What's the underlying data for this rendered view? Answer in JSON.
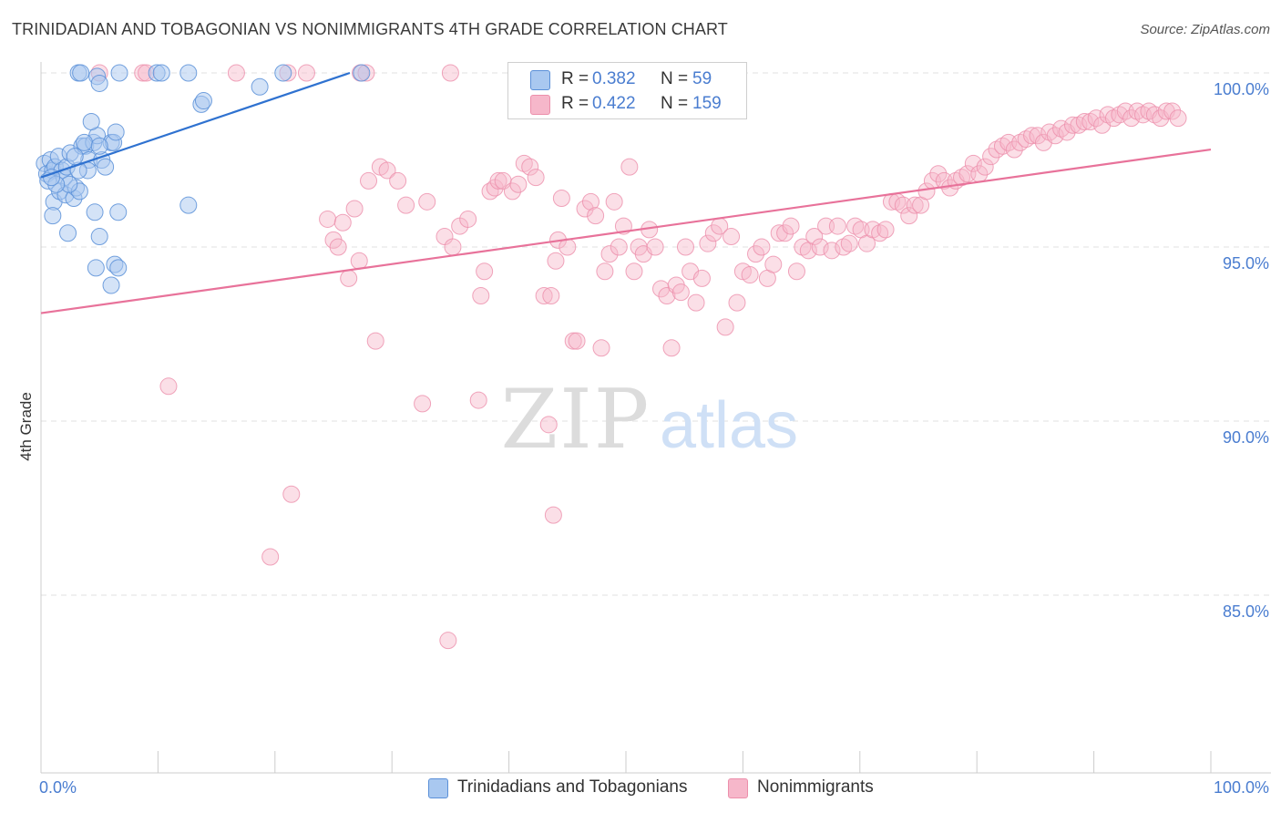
{
  "title": "TRINIDADIAN AND TOBAGONIAN VS NONIMMIGRANTS 4TH GRADE CORRELATION CHART",
  "source": "Source: ZipAtlas.com",
  "watermark": {
    "zip": "ZIP",
    "atlas": "atlas"
  },
  "colors": {
    "blue_fill": "#a9c8f0",
    "blue_stroke": "#5b90d8",
    "blue_line": "#2f72d0",
    "pink_fill": "#f6b7ca",
    "pink_stroke": "#ec8fab",
    "pink_line": "#e8729a",
    "tick_text": "#4a7dd0",
    "grid": "#e2e2e2"
  },
  "legend": {
    "items": [
      {
        "r_label": "R =",
        "r_value": "0.382",
        "n_label": "N =",
        "n_value": "59"
      },
      {
        "r_label": "R =",
        "r_value": "0.422",
        "n_label": "N =",
        "n_value": "159"
      }
    ]
  },
  "bottom_legend": {
    "blue": "Trinidadians and Tobagonians",
    "pink": "Nonimmigrants"
  },
  "chart_data": {
    "type": "scatter",
    "title": "TRINIDADIAN AND TOBAGONIAN VS NONIMMIGRANTS 4TH GRADE CORRELATION CHART",
    "xlabel": "",
    "ylabel": "4th Grade",
    "xlim": [
      0,
      100
    ],
    "ylim": [
      80.0,
      100.2
    ],
    "x_tick_labels": [
      "0.0%",
      "100.0%"
    ],
    "y_ticks": [
      {
        "value": 100.0,
        "label": "100.0%"
      },
      {
        "value": 95.0,
        "label": "95.0%"
      },
      {
        "value": 90.0,
        "label": "90.0%"
      },
      {
        "value": 85.0,
        "label": "85.0%"
      }
    ],
    "x_minor_ticks": [
      10,
      20,
      30,
      40,
      50,
      60,
      70,
      80,
      90,
      100
    ],
    "series": [
      {
        "name": "Trinidadians and Tobagonians",
        "R": 0.382,
        "N": 59,
        "trend": {
          "x": [
            0,
            26.4
          ],
          "y": [
            97.0,
            100.0
          ]
        },
        "points": [
          [
            0.3,
            97.4
          ],
          [
            0.5,
            97.1
          ],
          [
            0.8,
            97.5
          ],
          [
            1.0,
            97.2
          ],
          [
            1.2,
            97.3
          ],
          [
            1.5,
            97.6
          ],
          [
            1.8,
            97.2
          ],
          [
            2.0,
            97.0
          ],
          [
            2.2,
            97.3
          ],
          [
            2.5,
            97.7
          ],
          [
            0.6,
            96.9
          ],
          [
            1.1,
            96.3
          ],
          [
            1.6,
            96.6
          ],
          [
            2.1,
            96.5
          ],
          [
            2.8,
            96.4
          ],
          [
            3.0,
            96.7
          ],
          [
            3.3,
            96.6
          ],
          [
            2.4,
            96.8
          ],
          [
            1.3,
            96.8
          ],
          [
            0.9,
            97.0
          ],
          [
            3.5,
            97.9
          ],
          [
            3.8,
            97.9
          ],
          [
            4.1,
            97.5
          ],
          [
            4.5,
            98.0
          ],
          [
            4.8,
            98.2
          ],
          [
            5.2,
            97.5
          ],
          [
            5.5,
            97.3
          ],
          [
            6.0,
            98.0
          ],
          [
            6.2,
            98.0
          ],
          [
            6.4,
            98.3
          ],
          [
            3.7,
            98.0
          ],
          [
            4.0,
            97.2
          ],
          [
            4.3,
            98.6
          ],
          [
            5.0,
            97.9
          ],
          [
            4.6,
            96.0
          ],
          [
            5.0,
            95.3
          ],
          [
            2.3,
            95.4
          ],
          [
            1.0,
            95.9
          ],
          [
            6.0,
            93.9
          ],
          [
            6.3,
            94.5
          ],
          [
            4.7,
            94.4
          ],
          [
            6.6,
            96.0
          ],
          [
            3.2,
            97.2
          ],
          [
            2.9,
            97.6
          ],
          [
            4.8,
            99.9
          ],
          [
            5.0,
            99.7
          ],
          [
            3.2,
            100.0
          ],
          [
            3.4,
            100.0
          ],
          [
            6.7,
            100.0
          ],
          [
            9.9,
            100.0
          ],
          [
            10.3,
            100.0
          ],
          [
            12.6,
            100.0
          ],
          [
            13.7,
            99.1
          ],
          [
            13.9,
            99.2
          ],
          [
            18.7,
            99.6
          ],
          [
            20.7,
            100.0
          ],
          [
            27.4,
            100.0
          ],
          [
            6.6,
            94.4
          ],
          [
            12.6,
            96.2
          ]
        ]
      },
      {
        "name": "Nonimmigrants",
        "R": 0.422,
        "N": 159,
        "trend": {
          "x": [
            0,
            100
          ],
          "y": [
            93.1,
            97.8
          ]
        },
        "points": [
          [
            8.7,
            100.0
          ],
          [
            5.0,
            100.0
          ],
          [
            9.0,
            100.0
          ],
          [
            16.7,
            100.0
          ],
          [
            21.1,
            100.0
          ],
          [
            22.7,
            100.0
          ],
          [
            27.3,
            100.0
          ],
          [
            27.8,
            100.0
          ],
          [
            35.0,
            100.0
          ],
          [
            10.9,
            91.0
          ],
          [
            21.4,
            87.9
          ],
          [
            19.6,
            86.1
          ],
          [
            32.6,
            90.5
          ],
          [
            34.8,
            83.7
          ],
          [
            37.4,
            90.6
          ],
          [
            43.4,
            89.9
          ],
          [
            43.8,
            87.3
          ],
          [
            24.5,
            95.8
          ],
          [
            25.0,
            95.2
          ],
          [
            25.4,
            95.0
          ],
          [
            25.8,
            95.7
          ],
          [
            26.3,
            94.1
          ],
          [
            26.8,
            96.1
          ],
          [
            27.2,
            94.6
          ],
          [
            28.0,
            96.9
          ],
          [
            28.6,
            92.3
          ],
          [
            29.0,
            97.3
          ],
          [
            29.6,
            97.2
          ],
          [
            30.5,
            96.9
          ],
          [
            31.2,
            96.2
          ],
          [
            33.0,
            96.3
          ],
          [
            34.5,
            95.3
          ],
          [
            35.2,
            95.0
          ],
          [
            35.8,
            95.6
          ],
          [
            36.5,
            95.8
          ],
          [
            37.6,
            93.6
          ],
          [
            37.9,
            94.3
          ],
          [
            38.4,
            96.6
          ],
          [
            38.8,
            96.7
          ],
          [
            39.1,
            96.9
          ],
          [
            39.5,
            96.9
          ],
          [
            40.3,
            96.6
          ],
          [
            40.8,
            96.8
          ],
          [
            41.3,
            97.4
          ],
          [
            41.8,
            97.3
          ],
          [
            42.3,
            97.0
          ],
          [
            43.0,
            93.6
          ],
          [
            43.6,
            93.6
          ],
          [
            44.0,
            94.6
          ],
          [
            44.2,
            95.2
          ],
          [
            44.5,
            96.4
          ],
          [
            45.0,
            95.0
          ],
          [
            45.5,
            92.3
          ],
          [
            45.8,
            92.3
          ],
          [
            46.5,
            96.1
          ],
          [
            47.0,
            96.3
          ],
          [
            47.4,
            95.9
          ],
          [
            47.9,
            92.1
          ],
          [
            48.2,
            94.3
          ],
          [
            48.6,
            94.8
          ],
          [
            49.0,
            96.3
          ],
          [
            49.4,
            95.0
          ],
          [
            49.8,
            95.6
          ],
          [
            50.3,
            97.3
          ],
          [
            50.7,
            94.3
          ],
          [
            51.1,
            95.0
          ],
          [
            51.5,
            94.8
          ],
          [
            52.0,
            95.5
          ],
          [
            52.5,
            95.0
          ],
          [
            53.0,
            93.8
          ],
          [
            53.5,
            93.6
          ],
          [
            53.9,
            92.1
          ],
          [
            54.3,
            93.9
          ],
          [
            54.7,
            93.7
          ],
          [
            55.1,
            95.0
          ],
          [
            55.5,
            94.3
          ],
          [
            56.0,
            93.4
          ],
          [
            56.5,
            94.1
          ],
          [
            57.0,
            95.1
          ],
          [
            57.5,
            95.4
          ],
          [
            58.0,
            95.6
          ],
          [
            58.5,
            92.7
          ],
          [
            59.0,
            95.3
          ],
          [
            59.5,
            93.4
          ],
          [
            60.0,
            94.3
          ],
          [
            60.6,
            94.2
          ],
          [
            61.1,
            94.8
          ],
          [
            61.6,
            95.0
          ],
          [
            62.1,
            94.1
          ],
          [
            62.6,
            94.5
          ],
          [
            63.1,
            95.4
          ],
          [
            63.6,
            95.4
          ],
          [
            64.1,
            95.6
          ],
          [
            64.6,
            94.3
          ],
          [
            65.1,
            95.0
          ],
          [
            65.6,
            94.9
          ],
          [
            66.1,
            95.3
          ],
          [
            66.6,
            95.0
          ],
          [
            67.1,
            95.6
          ],
          [
            67.6,
            94.9
          ],
          [
            68.1,
            95.6
          ],
          [
            68.6,
            95.0
          ],
          [
            69.1,
            95.1
          ],
          [
            69.6,
            95.6
          ],
          [
            70.1,
            95.5
          ],
          [
            70.6,
            95.1
          ],
          [
            71.1,
            95.5
          ],
          [
            71.7,
            95.4
          ],
          [
            72.2,
            95.5
          ],
          [
            72.7,
            96.3
          ],
          [
            73.2,
            96.3
          ],
          [
            73.7,
            96.2
          ],
          [
            74.2,
            95.9
          ],
          [
            74.7,
            96.2
          ],
          [
            75.2,
            96.2
          ],
          [
            75.7,
            96.6
          ],
          [
            76.2,
            96.9
          ],
          [
            76.7,
            97.1
          ],
          [
            77.2,
            96.9
          ],
          [
            77.7,
            96.7
          ],
          [
            78.2,
            96.9
          ],
          [
            78.7,
            97.0
          ],
          [
            79.2,
            97.1
          ],
          [
            79.7,
            97.4
          ],
          [
            80.2,
            97.1
          ],
          [
            80.7,
            97.3
          ],
          [
            81.2,
            97.6
          ],
          [
            81.7,
            97.8
          ],
          [
            82.2,
            97.9
          ],
          [
            82.7,
            98.0
          ],
          [
            83.2,
            97.8
          ],
          [
            83.7,
            98.0
          ],
          [
            84.2,
            98.1
          ],
          [
            84.7,
            98.2
          ],
          [
            85.2,
            98.2
          ],
          [
            85.7,
            98.0
          ],
          [
            86.2,
            98.3
          ],
          [
            86.7,
            98.2
          ],
          [
            87.2,
            98.4
          ],
          [
            87.7,
            98.3
          ],
          [
            88.2,
            98.5
          ],
          [
            88.7,
            98.5
          ],
          [
            89.2,
            98.6
          ],
          [
            89.7,
            98.6
          ],
          [
            90.2,
            98.7
          ],
          [
            90.7,
            98.5
          ],
          [
            91.2,
            98.8
          ],
          [
            91.7,
            98.7
          ],
          [
            92.2,
            98.8
          ],
          [
            92.7,
            98.9
          ],
          [
            93.2,
            98.7
          ],
          [
            93.7,
            98.9
          ],
          [
            94.2,
            98.8
          ],
          [
            94.7,
            98.9
          ],
          [
            95.2,
            98.8
          ],
          [
            95.7,
            98.7
          ],
          [
            96.2,
            98.9
          ],
          [
            96.7,
            98.9
          ],
          [
            97.2,
            98.7
          ]
        ]
      }
    ]
  }
}
